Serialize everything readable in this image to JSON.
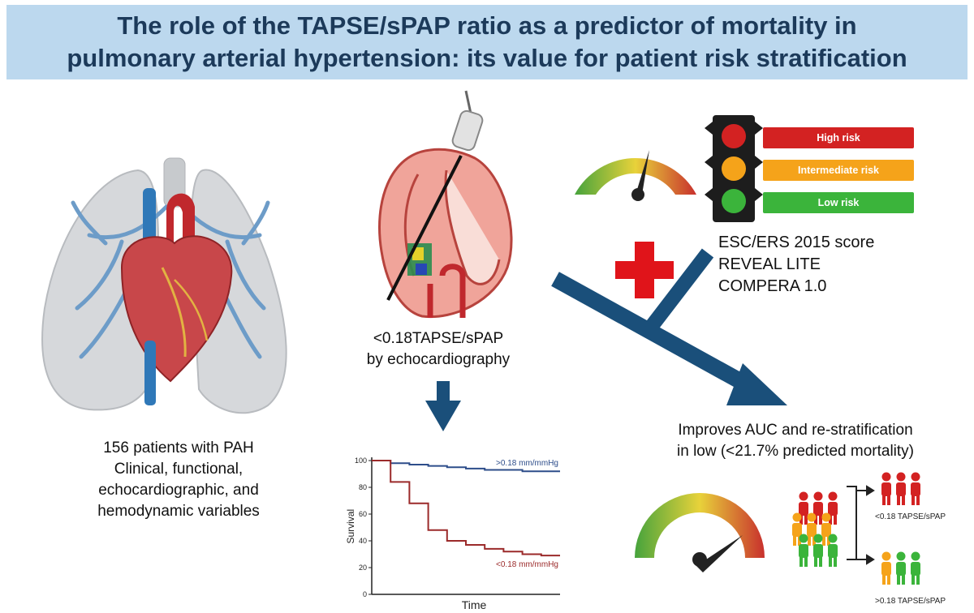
{
  "title": {
    "line1": "The role of the TAPSE/sPAP ratio as a predictor of mortality in",
    "line2": "pulmonary arterial hypertension: its value for patient risk stratification"
  },
  "left_caption": {
    "line1": "156 patients with PAH",
    "line2": "Clinical, functional,",
    "line3": "echocardiographic, and",
    "line4": "hemodynamic variables"
  },
  "echo_caption": {
    "line1": "<0.18TAPSE/sPAP",
    "line2": "by echocardiography"
  },
  "risk_levels": {
    "high": "High risk",
    "intermediate": "Intermediate risk",
    "low": "Low risk"
  },
  "scores": {
    "line1": "ESC/ERS 2015 score",
    "line2": "REVEAL LITE",
    "line3": "COMPERA 1.0"
  },
  "improve_caption": {
    "line1": "Improves AUC and re-stratification",
    "line2": "in low (<21.7% predicted mortality)"
  },
  "people_labels": {
    "low_group": "<0.18 TAPSE/sPAP",
    "high_group": ">0.18 TAPSE/sPAP"
  },
  "colors": {
    "title_band": "#bcd8ee",
    "arrow": "#1a4f7a",
    "high": "#d32222",
    "intermediate": "#f5a31a",
    "low": "#3bb43b",
    "upper_curve": "#2d4d8a",
    "lower_curve": "#9b2a2a"
  },
  "chart_data": {
    "type": "line",
    "xlabel": "Time",
    "ylabel": "Survival",
    "ylim": [
      0,
      100
    ],
    "yticks": [
      0,
      20,
      40,
      60,
      80,
      100
    ],
    "x": [
      0,
      1,
      2,
      3,
      4,
      5,
      6,
      7,
      8,
      9,
      10
    ],
    "series": [
      {
        "name": ">0.18 mm/mmHg",
        "values": [
          100,
          98,
          97,
          96,
          95,
          94,
          93,
          93,
          92,
          92,
          92
        ]
      },
      {
        "name": "<0.18 mm/mmHg",
        "values": [
          100,
          84,
          68,
          48,
          40,
          37,
          34,
          32,
          30,
          29,
          29
        ]
      }
    ]
  }
}
